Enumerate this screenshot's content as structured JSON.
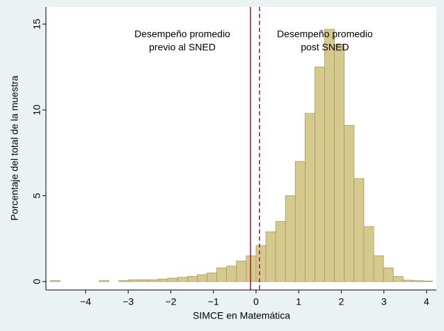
{
  "chart_data": {
    "type": "histogram",
    "x_label": "SIMCE en Matemática",
    "y_label": "Porcentaje del total de la muestra",
    "bins": [
      -4.83,
      -4.6,
      -4.37,
      -4.14,
      -3.91,
      -3.68,
      -3.45,
      -3.22,
      -2.99,
      -2.76,
      -2.53,
      -2.3,
      -2.07,
      -1.84,
      -1.61,
      -1.38,
      -1.15,
      -0.92,
      -0.69,
      -0.46,
      -0.23,
      0,
      0.23,
      0.46,
      0.69,
      0.92,
      1.15,
      1.38,
      1.61,
      1.84,
      2.07,
      2.3,
      2.53,
      2.76,
      2.99,
      3.22,
      3.45,
      3.68,
      3.91,
      4.14
    ],
    "counts": [
      0.05,
      0,
      0,
      0,
      0,
      0.05,
      0,
      0.05,
      0.1,
      0.1,
      0.1,
      0.15,
      0.2,
      0.25,
      0.3,
      0.4,
      0.5,
      0.8,
      0.9,
      1.2,
      1.5,
      2.1,
      2.9,
      3.5,
      5.0,
      7.0,
      9.8,
      12.5,
      14.7,
      13.8,
      9.1,
      6.0,
      3.2,
      1.5,
      0.8,
      0.3,
      0.08,
      0.05,
      0.03
    ],
    "color": "#d5c98d",
    "edge_color": "#a49a62",
    "xlim": [
      -4.93,
      4.23
    ],
    "ylim": [
      -0.49,
      16.0
    ],
    "xticks": [
      {
        "value": -4,
        "label": "−4"
      },
      {
        "value": -3,
        "label": "−3"
      },
      {
        "value": -2,
        "label": "−2"
      },
      {
        "value": -1,
        "label": "−1"
      },
      0,
      1,
      2,
      3,
      4
    ],
    "yticks": [
      0,
      5,
      10,
      15
    ],
    "grid": false,
    "reference_lines": [
      {
        "x": -0.13,
        "style": "solid",
        "color": "#a3123a",
        "annotation": [
          "Desempeño promedio",
          "previo al SNED"
        ]
      },
      {
        "x": 0.08,
        "style": "dashed",
        "color": "#a3123a",
        "annotation": [
          "Desempeño promedio",
          "post SNED"
        ]
      }
    ]
  }
}
